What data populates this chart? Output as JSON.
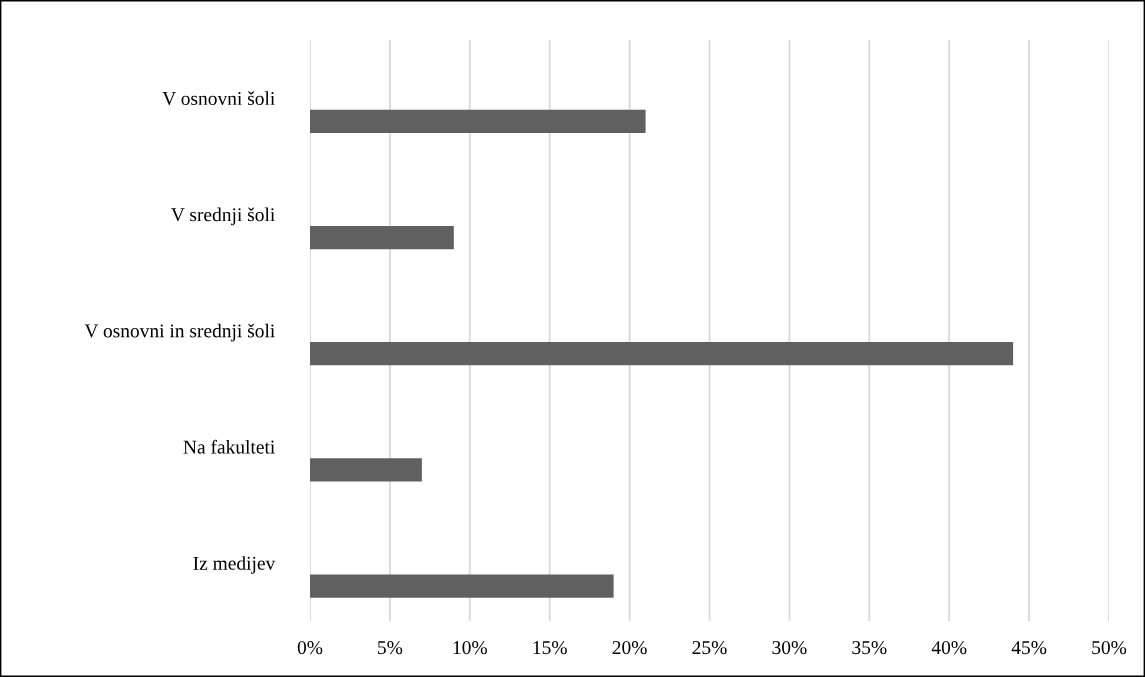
{
  "chart_data": {
    "type": "bar",
    "orientation": "horizontal",
    "categories": [
      "V osnovni šoli",
      "V srednji šoli",
      "V osnovni in srednji šoli",
      "Na fakulteti",
      "Iz medijev"
    ],
    "values": [
      21,
      9,
      44,
      7,
      19
    ],
    "color": "#606060",
    "xlim": [
      0,
      50
    ],
    "xticks": [
      {
        "value": 0,
        "label": "0%"
      },
      {
        "value": 5,
        "label": "5%"
      },
      {
        "value": 10,
        "label": "10%"
      },
      {
        "value": 15,
        "label": "15%"
      },
      {
        "value": 20,
        "label": "20%"
      },
      {
        "value": 25,
        "label": "25%"
      },
      {
        "value": 30,
        "label": "30%"
      },
      {
        "value": 35,
        "label": "35%"
      },
      {
        "value": 40,
        "label": "40%"
      },
      {
        "value": 45,
        "label": "45%"
      },
      {
        "value": 50,
        "label": "50%"
      }
    ],
    "grid": "x",
    "legend": false
  }
}
